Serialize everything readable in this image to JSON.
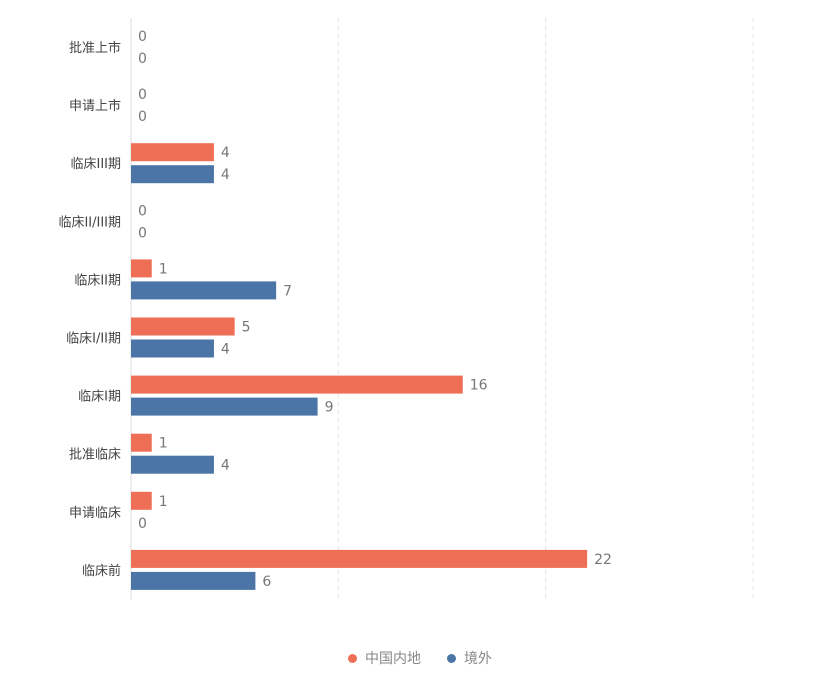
{
  "chart_data": {
    "type": "bar",
    "orientation": "horizontal",
    "categories": [
      "批准上市",
      "申请上市",
      "临床III期",
      "临床II/III期",
      "临床II期",
      "临床I/II期",
      "临床I期",
      "批准临床",
      "申请临床",
      "临床前"
    ],
    "series": [
      {
        "name": "中国内地",
        "color": "#ee6e56",
        "values": [
          0,
          0,
          4,
          0,
          1,
          5,
          16,
          1,
          1,
          22
        ]
      },
      {
        "name": "境外",
        "color": "#4a75a6",
        "values": [
          0,
          0,
          4,
          0,
          7,
          4,
          9,
          4,
          0,
          6
        ]
      }
    ],
    "xlim": [
      0,
      30
    ],
    "grid": true,
    "legend_position": "bottom"
  }
}
